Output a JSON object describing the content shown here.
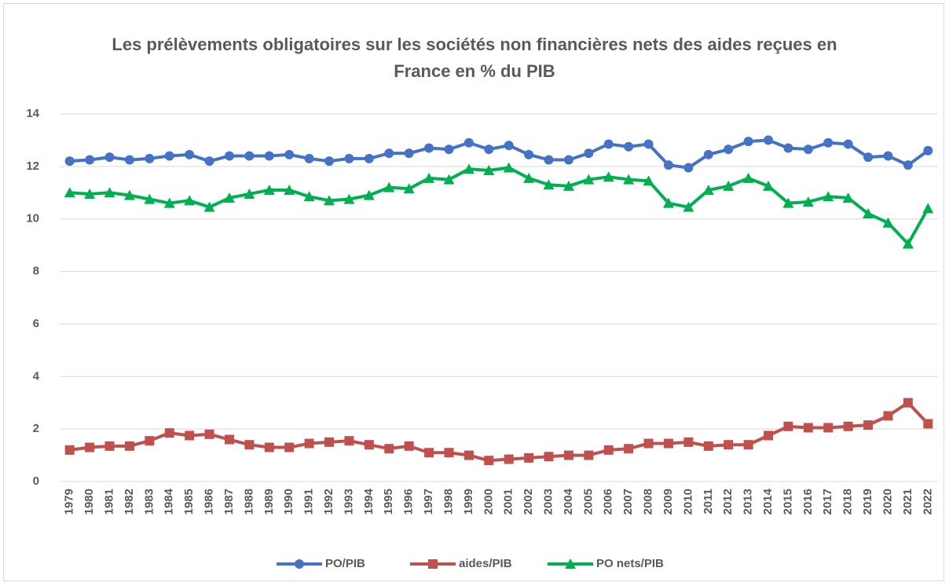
{
  "chart_data": {
    "type": "line",
    "title": "Les prélèvements obligatoires sur les sociétés non financières nets des aides reçues en France en % du PIB",
    "categories": [
      "1979",
      "1980",
      "1981",
      "1982",
      "1983",
      "1984",
      "1985",
      "1986",
      "1987",
      "1988",
      "1989",
      "1990",
      "1991",
      "1992",
      "1993",
      "1994",
      "1995",
      "1996",
      "1997",
      "1998",
      "1999",
      "2000",
      "2001",
      "2002",
      "2003",
      "2004",
      "2005",
      "2006",
      "2007",
      "2008",
      "2009",
      "2010",
      "2011",
      "2012",
      "2013",
      "2014",
      "2015",
      "2016",
      "2017",
      "2018",
      "2019",
      "2020",
      "2021",
      "2022"
    ],
    "series": [
      {
        "name": "PO/PIB",
        "color": "#4472c4",
        "marker": "circle",
        "values": [
          12.2,
          12.25,
          12.35,
          12.25,
          12.3,
          12.4,
          12.45,
          12.2,
          12.4,
          12.4,
          12.4,
          12.45,
          12.3,
          12.2,
          12.3,
          12.3,
          12.5,
          12.5,
          12.7,
          12.65,
          12.9,
          12.65,
          12.8,
          12.45,
          12.25,
          12.25,
          12.5,
          12.85,
          12.75,
          12.85,
          12.05,
          11.95,
          12.45,
          12.65,
          12.95,
          13.0,
          12.7,
          12.65,
          12.9,
          12.85,
          12.35,
          12.4,
          12.05,
          12.6
        ]
      },
      {
        "name": "aides/PIB",
        "color": "#c0504d",
        "marker": "square",
        "values": [
          1.2,
          1.3,
          1.35,
          1.35,
          1.55,
          1.85,
          1.75,
          1.8,
          1.6,
          1.4,
          1.3,
          1.3,
          1.45,
          1.5,
          1.55,
          1.4,
          1.25,
          1.35,
          1.1,
          1.1,
          1.0,
          0.8,
          0.85,
          0.9,
          0.95,
          1.0,
          1.0,
          1.2,
          1.25,
          1.45,
          1.45,
          1.5,
          1.35,
          1.4,
          1.4,
          1.75,
          2.1,
          2.05,
          2.05,
          2.1,
          2.15,
          2.5,
          3.0,
          2.2
        ]
      },
      {
        "name": "PO nets/PIB",
        "color": "#00b050",
        "marker": "triangle",
        "values": [
          11.0,
          10.95,
          11.0,
          10.9,
          10.75,
          10.6,
          10.7,
          10.45,
          10.8,
          10.95,
          11.1,
          11.1,
          10.85,
          10.7,
          10.75,
          10.9,
          11.2,
          11.15,
          11.55,
          11.5,
          11.9,
          11.85,
          11.95,
          11.55,
          11.3,
          11.25,
          11.5,
          11.6,
          11.5,
          11.45,
          10.6,
          10.45,
          11.1,
          11.25,
          11.55,
          11.25,
          10.6,
          10.65,
          10.85,
          10.8,
          10.2,
          9.85,
          9.05,
          10.4
        ]
      }
    ],
    "ylim": [
      0,
      14
    ],
    "yticks": [
      0,
      2,
      4,
      6,
      8,
      10,
      12,
      14
    ],
    "grid": true,
    "legend": "bottom"
  }
}
